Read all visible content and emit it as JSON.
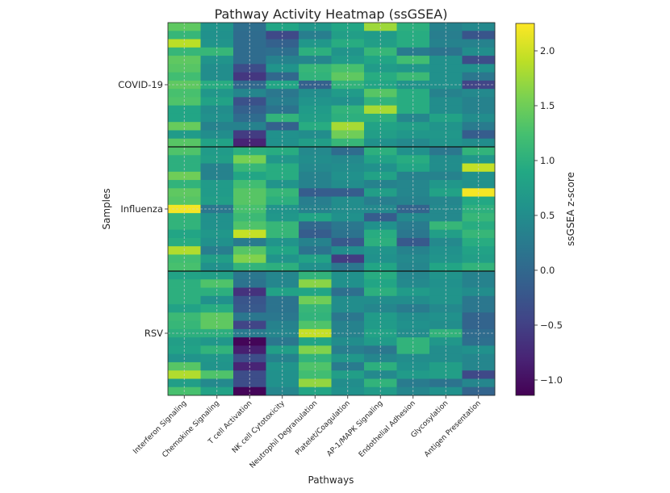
{
  "chart_data": {
    "type": "heatmap",
    "title": "Pathway Activity Heatmap (ssGSEA)",
    "xlabel": "Pathways",
    "ylabel": "Samples",
    "colormap": "viridis",
    "grid": true,
    "legend": "colorbar-right",
    "colorbar": {
      "label": "ssGSEA z-score",
      "range": [
        -1.14,
        2.25
      ],
      "ticks": [
        2.0,
        1.5,
        1.0,
        0.5,
        0.0,
        -0.5,
        -1.0
      ],
      "tick_labels": [
        "2.0",
        "1.5",
        "1.0",
        "0.5",
        "0.0",
        "−0.5",
        "−1.0"
      ]
    },
    "pathways": [
      "Interferon Signaling",
      "Chemokine Signaling",
      "T cell Activation",
      "NK cell Cytotoxicity",
      "Neutrophil Degranulation",
      "Platelet/Coagulation",
      "AP-1/MAPK Signaling",
      "Endothelial Adhesion",
      "Glycosylation",
      "Antigen Presentation"
    ],
    "groups": [
      {
        "name": "COVID-19",
        "values": [
          [
            1.4,
            0.6,
            0.1,
            0.85,
            0.65,
            0.85,
            1.75,
            1.0,
            0.35,
            0.45
          ],
          [
            1.1,
            0.55,
            0.05,
            -0.4,
            0.3,
            0.75,
            0.7,
            0.95,
            0.3,
            -0.25
          ],
          [
            1.9,
            0.6,
            0.05,
            -0.1,
            0.65,
            0.95,
            0.75,
            0.95,
            0.35,
            0.35
          ],
          [
            1.1,
            1.1,
            0.05,
            0.1,
            1.0,
            0.6,
            1.1,
            0.25,
            0.15,
            0.5
          ],
          [
            1.4,
            0.6,
            0.05,
            0.35,
            0.4,
            0.7,
            0.85,
            1.2,
            0.55,
            -0.35
          ],
          [
            1.35,
            0.5,
            -0.35,
            0.6,
            1.1,
            1.25,
            0.7,
            0.65,
            0.55,
            0.55
          ],
          [
            1.2,
            0.5,
            -0.6,
            0.0,
            1.05,
            1.4,
            0.95,
            1.15,
            0.55,
            0.2
          ],
          [
            1.4,
            0.95,
            0.0,
            0.85,
            -0.1,
            1.05,
            0.85,
            0.6,
            0.55,
            -0.45
          ],
          [
            1.25,
            0.65,
            0.4,
            0.2,
            0.5,
            0.7,
            1.35,
            0.95,
            0.35,
            0.45
          ],
          [
            1.3,
            0.8,
            -0.3,
            0.3,
            0.6,
            0.55,
            1.05,
            0.95,
            0.5,
            0.35
          ],
          [
            0.85,
            0.5,
            -0.1,
            0.15,
            0.7,
            1.05,
            1.8,
            0.95,
            0.5,
            0.35
          ],
          [
            0.85,
            0.55,
            0.05,
            1.05,
            0.75,
            1.0,
            1.0,
            0.4,
            0.8,
            0.5
          ],
          [
            1.45,
            0.35,
            0.35,
            -0.1,
            0.95,
            1.8,
            0.8,
            0.75,
            0.6,
            0.25
          ],
          [
            0.7,
            0.5,
            -0.55,
            0.55,
            0.5,
            1.5,
            0.75,
            0.65,
            0.65,
            -0.15
          ],
          [
            1.35,
            0.8,
            -0.8,
            0.55,
            0.75,
            1.1,
            0.55,
            0.45,
            0.6,
            0.5
          ]
        ]
      },
      {
        "name": "Influenza",
        "values": [
          [
            1.3,
            0.7,
            1.0,
            0.95,
            0.45,
            0.05,
            1.0,
            0.55,
            0.2,
            1.05
          ],
          [
            1.0,
            0.75,
            1.55,
            0.65,
            0.5,
            0.45,
            0.8,
            0.95,
            0.5,
            0.65
          ],
          [
            1.0,
            0.35,
            1.1,
            0.95,
            0.45,
            0.5,
            0.55,
            0.85,
            0.5,
            1.95
          ],
          [
            1.5,
            0.35,
            0.85,
            0.95,
            0.35,
            0.55,
            0.8,
            0.35,
            0.35,
            0.55
          ],
          [
            1.05,
            0.7,
            1.2,
            0.6,
            0.35,
            0.5,
            0.35,
            0.4,
            0.65,
            0.55
          ],
          [
            1.4,
            0.7,
            1.35,
            1.1,
            -0.15,
            -0.15,
            0.75,
            0.4,
            0.8,
            2.2
          ],
          [
            1.35,
            0.75,
            1.35,
            1.0,
            0.3,
            0.5,
            0.3,
            0.35,
            0.4,
            0.9
          ],
          [
            2.2,
            0.2,
            1.25,
            0.6,
            0.35,
            0.5,
            0.45,
            -0.05,
            0.45,
            1.0
          ],
          [
            1.05,
            0.55,
            1.15,
            0.65,
            0.85,
            0.55,
            -0.15,
            0.45,
            0.45,
            1.1
          ],
          [
            1.05,
            0.55,
            1.3,
            1.1,
            0.0,
            0.2,
            0.55,
            0.25,
            1.1,
            0.95
          ],
          [
            0.85,
            0.65,
            1.95,
            1.1,
            -0.15,
            0.15,
            0.95,
            0.2,
            0.75,
            1.1
          ],
          [
            0.95,
            0.55,
            0.25,
            0.6,
            0.35,
            -0.2,
            1.0,
            -0.2,
            0.45,
            0.95
          ],
          [
            1.85,
            0.3,
            1.35,
            0.85,
            0.15,
            0.5,
            0.6,
            0.35,
            0.55,
            0.8
          ],
          [
            1.2,
            0.75,
            1.6,
            0.6,
            0.8,
            -0.55,
            0.55,
            0.45,
            0.6,
            0.75
          ],
          [
            1.25,
            0.55,
            1.05,
            1.0,
            0.55,
            0.2,
            0.85,
            0.4,
            0.85,
            1.05
          ]
        ]
      },
      {
        "name": "RSV",
        "values": [
          [
            0.8,
            0.75,
            0.2,
            0.4,
            1.05,
            0.55,
            0.95,
            0.4,
            0.6,
            0.35
          ],
          [
            1.0,
            1.3,
            0.15,
            0.4,
            1.65,
            0.55,
            0.85,
            0.45,
            0.55,
            0.35
          ],
          [
            1.0,
            1.0,
            -0.65,
            0.8,
            0.85,
            0.1,
            1.0,
            0.7,
            0.6,
            0.5
          ],
          [
            1.0,
            0.55,
            -0.25,
            0.15,
            1.5,
            0.5,
            0.5,
            0.5,
            0.6,
            0.2
          ],
          [
            0.8,
            0.95,
            -0.2,
            0.15,
            1.1,
            0.5,
            0.4,
            0.25,
            0.45,
            0.2
          ],
          [
            1.15,
            1.4,
            0.2,
            0.2,
            1.05,
            0.2,
            0.7,
            0.5,
            0.55,
            -0.05
          ],
          [
            1.1,
            1.4,
            -0.45,
            0.35,
            1.3,
            0.35,
            0.7,
            0.55,
            0.5,
            -0.05
          ],
          [
            1.0,
            1.0,
            0.25,
            0.4,
            1.95,
            0.35,
            0.8,
            0.5,
            1.05,
            0.05
          ],
          [
            0.75,
            0.65,
            -1.1,
            0.2,
            0.85,
            0.5,
            0.7,
            1.05,
            0.65,
            0.1
          ],
          [
            0.8,
            1.05,
            -0.85,
            0.75,
            1.6,
            0.3,
            0.2,
            1.05,
            0.5,
            0.55
          ],
          [
            0.6,
            0.65,
            -0.35,
            0.35,
            1.05,
            0.65,
            0.4,
            0.5,
            0.5,
            0.4
          ],
          [
            1.35,
            0.6,
            -0.8,
            0.6,
            1.3,
            0.25,
            1.0,
            0.55,
            0.75,
            0.4
          ],
          [
            1.85,
            1.3,
            -0.35,
            0.55,
            1.2,
            0.75,
            0.45,
            0.7,
            0.75,
            -0.4
          ],
          [
            0.75,
            0.45,
            -0.35,
            0.55,
            1.7,
            0.5,
            1.05,
            0.25,
            0.15,
            0.4
          ],
          [
            1.25,
            0.8,
            -1.1,
            0.4,
            0.85,
            0.55,
            0.7,
            0.4,
            0.55,
            -0.05
          ]
        ]
      }
    ]
  }
}
